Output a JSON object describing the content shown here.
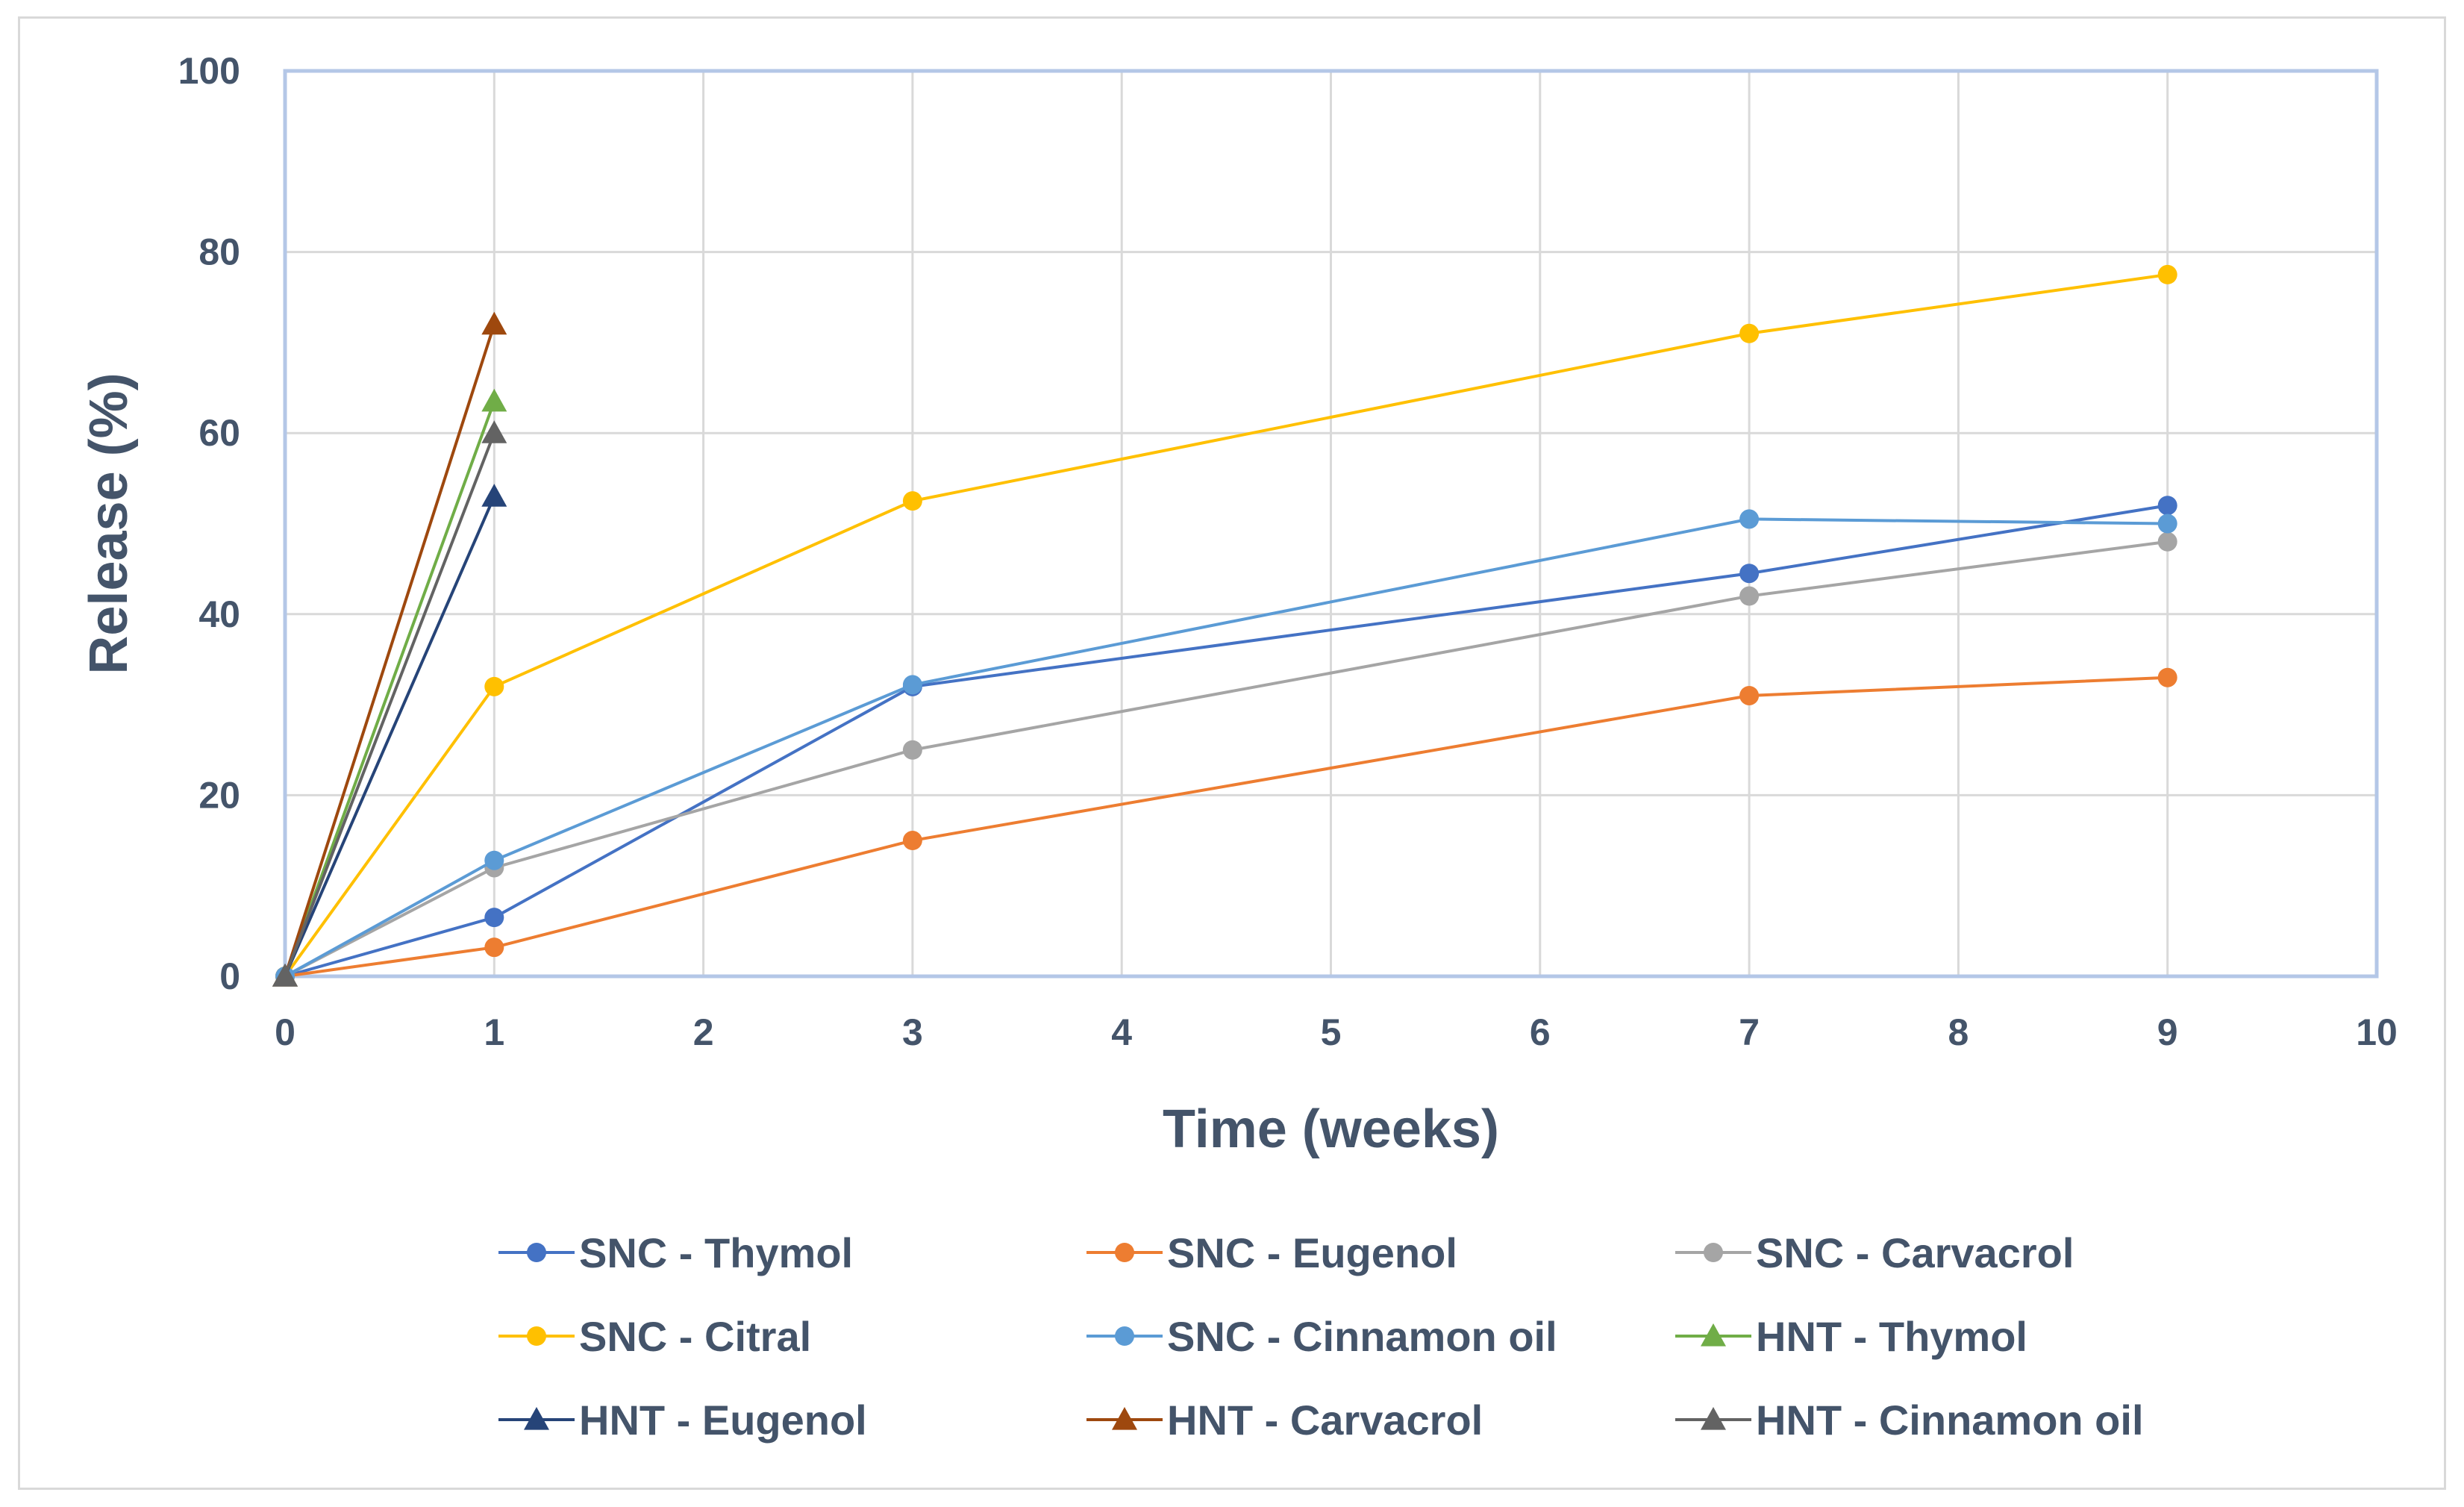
{
  "chart_data": {
    "type": "line",
    "title": "",
    "xlabel": "Time (weeks)",
    "ylabel": "Release (%)",
    "xlim": [
      0,
      10
    ],
    "ylim": [
      0,
      100
    ],
    "xticks": [
      0,
      1,
      2,
      3,
      4,
      5,
      6,
      7,
      8,
      9,
      10
    ],
    "yticks": [
      0,
      20,
      40,
      60,
      80,
      100
    ],
    "grid": true,
    "legend_position": "bottom",
    "series": [
      {
        "name": "SNC - Thymol",
        "color": "#4472c4",
        "marker": "circle",
        "x": [
          0,
          1,
          3,
          7,
          9
        ],
        "y": [
          0,
          6.5,
          32,
          44.5,
          52
        ]
      },
      {
        "name": "SNC - Eugenol",
        "color": "#ed7d31",
        "marker": "circle",
        "x": [
          0,
          1,
          3,
          7,
          9
        ],
        "y": [
          0,
          3.2,
          15,
          31,
          33
        ]
      },
      {
        "name": "SNC - Carvacrol",
        "color": "#a5a5a5",
        "marker": "circle",
        "x": [
          0,
          1,
          3,
          7,
          9
        ],
        "y": [
          0,
          12,
          25,
          42,
          48
        ]
      },
      {
        "name": "SNC - Citral",
        "color": "#ffc000",
        "marker": "circle",
        "x": [
          0,
          1,
          3,
          7,
          9
        ],
        "y": [
          0,
          32,
          52.5,
          71,
          77.5
        ]
      },
      {
        "name": "SNC - Cinnamon oil",
        "color": "#5b9bd5",
        "marker": "circle",
        "x": [
          0,
          1,
          3,
          7,
          9
        ],
        "y": [
          0,
          12.8,
          32.2,
          50.5,
          50
        ]
      },
      {
        "name": "HNT - Thymol",
        "color": "#70ad47",
        "marker": "triangle",
        "x": [
          0,
          1
        ],
        "y": [
          0,
          63.5
        ]
      },
      {
        "name": "HNT - Eugenol",
        "color": "#264478",
        "marker": "triangle",
        "x": [
          0,
          1
        ],
        "y": [
          0,
          53
        ]
      },
      {
        "name": "HNT - Carvacrol",
        "color": "#9e480e",
        "marker": "triangle",
        "x": [
          0,
          1
        ],
        "y": [
          0,
          72
        ]
      },
      {
        "name": "HNT - Cinnamon oil",
        "color": "#636363",
        "marker": "triangle",
        "x": [
          0,
          1
        ],
        "y": [
          0,
          60
        ]
      }
    ]
  }
}
